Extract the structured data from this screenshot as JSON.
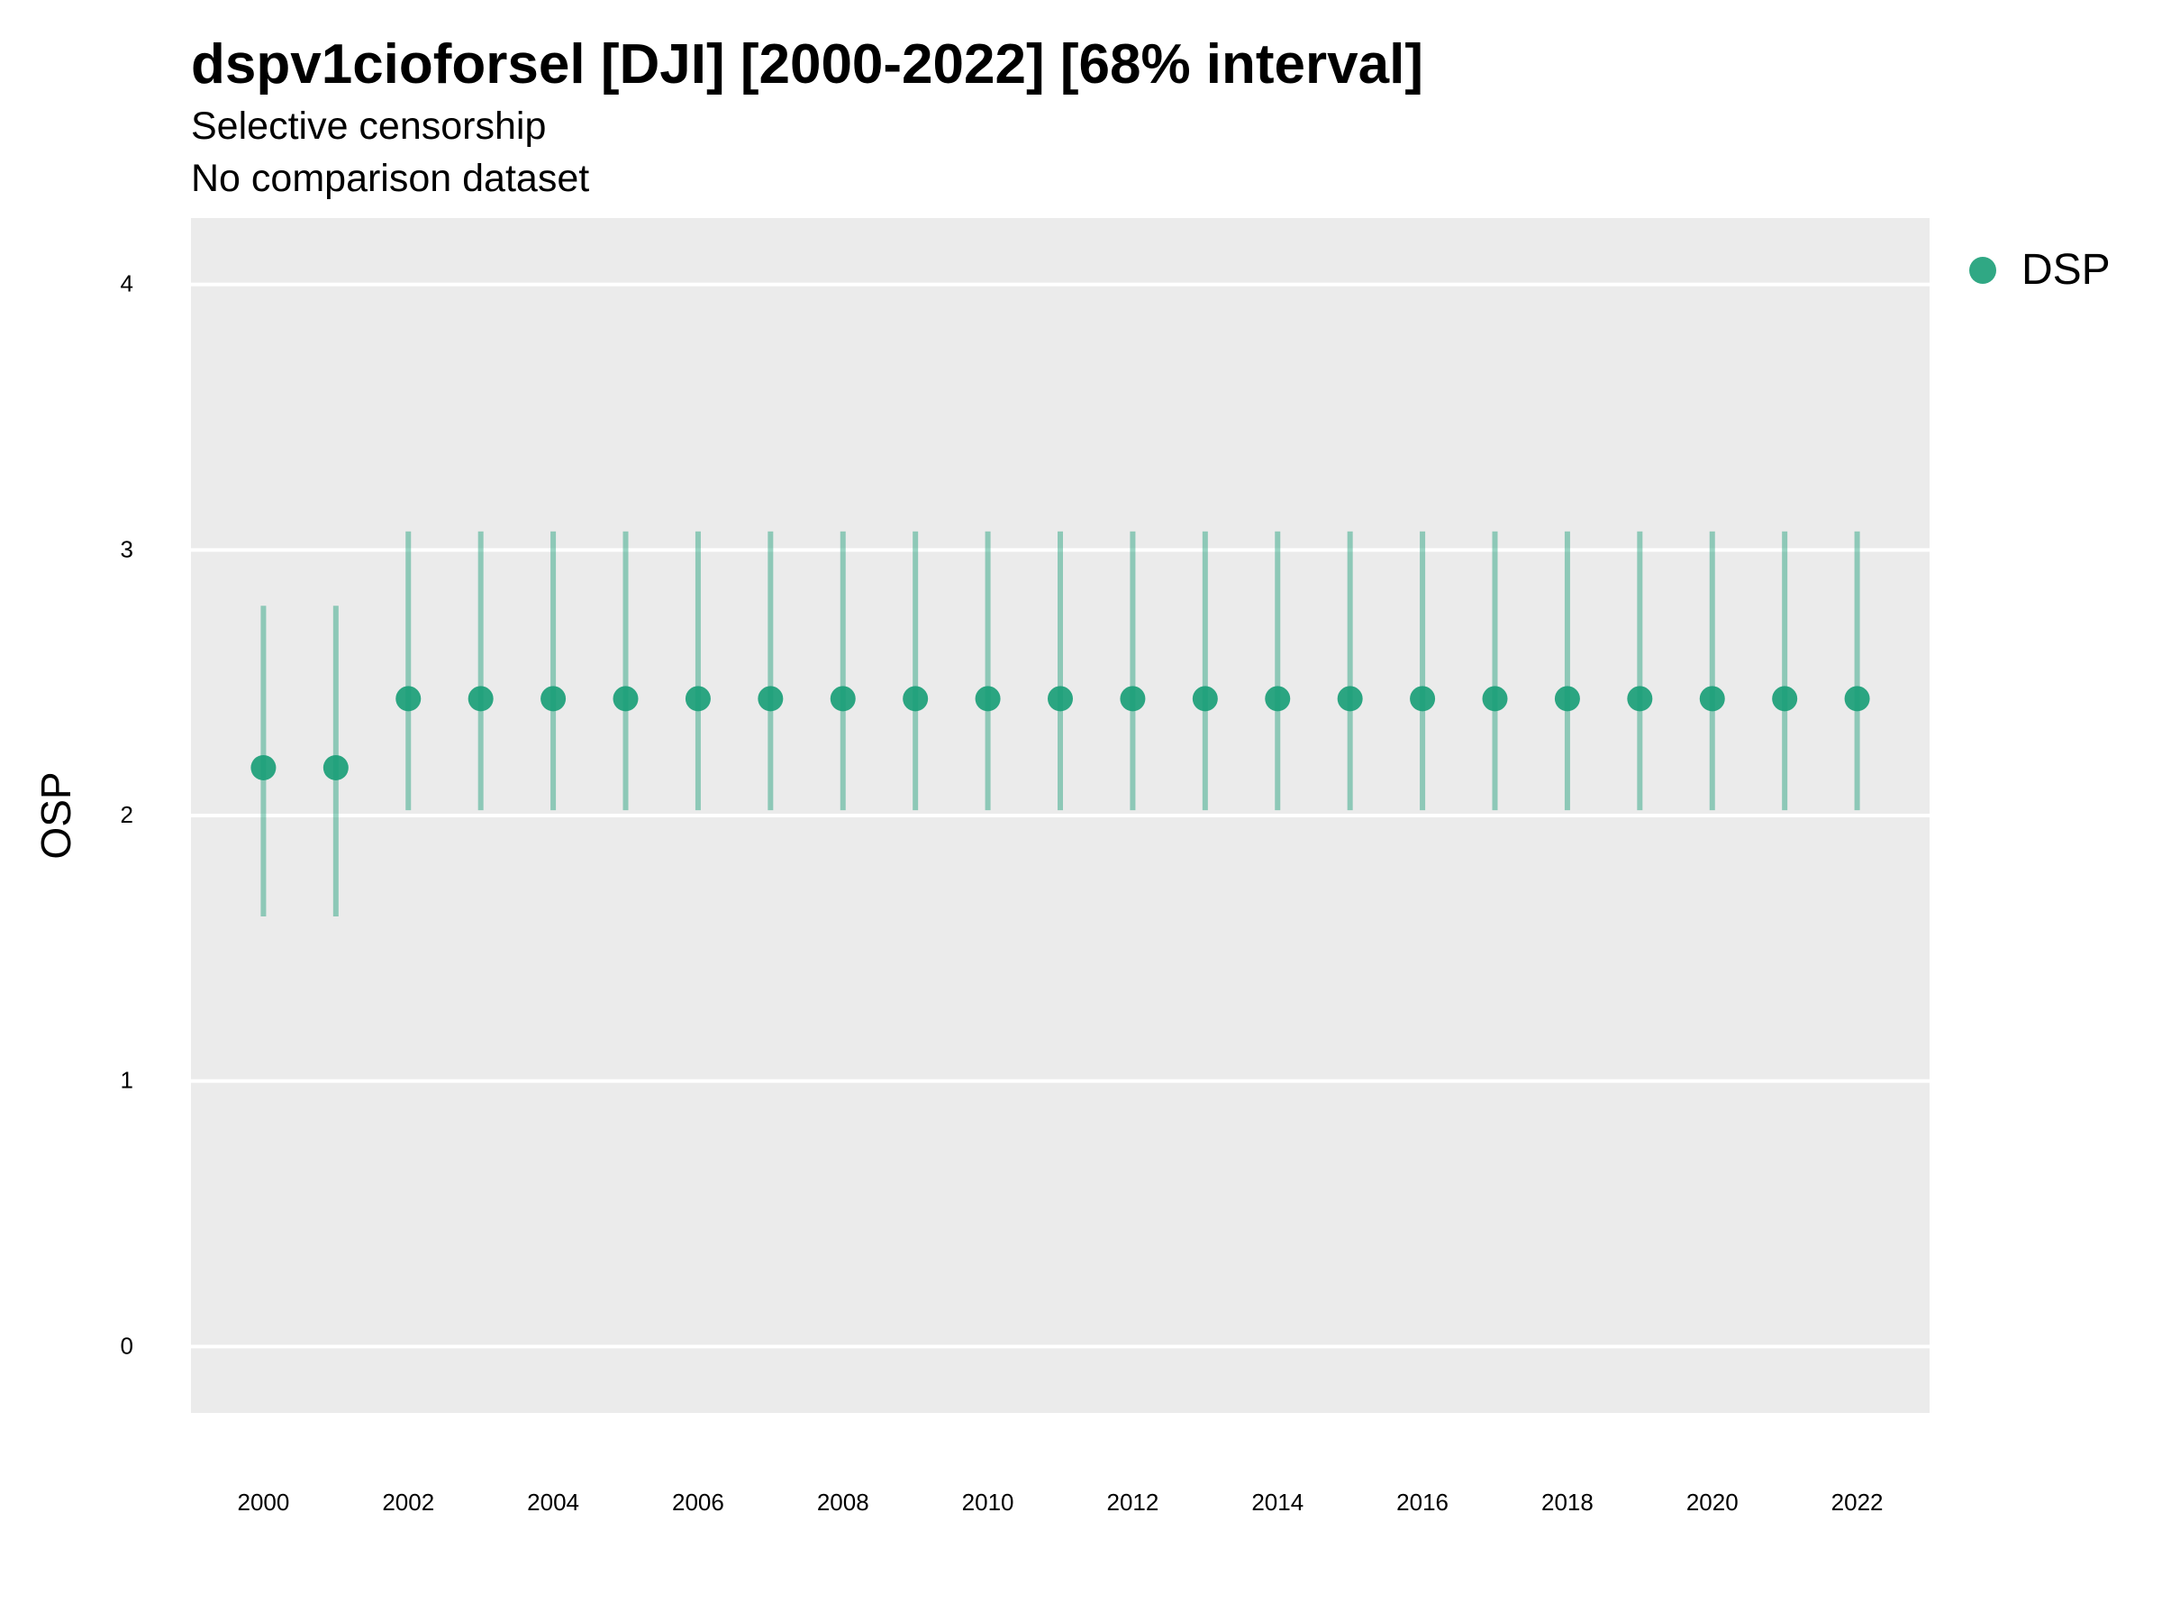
{
  "title": "dspv1cioforsel [DJI] [2000-2022] [68% interval]",
  "subtitle": "Selective censorship",
  "subtitle2": "No comparison dataset",
  "colors": {
    "series": "#1a9e77",
    "panel": "#ebebeb",
    "grid": "#ffffff"
  },
  "chart_data": {
    "type": "scatter",
    "ylabel": "OSP",
    "ylim": [
      -0.25,
      4.25
    ],
    "xlim": [
      1999,
      2023
    ],
    "yticks": [
      "0",
      "1",
      "2",
      "3",
      "4"
    ],
    "xticks": [
      "2000",
      "2002",
      "2004",
      "2006",
      "2008",
      "2010",
      "2012",
      "2014",
      "2016",
      "2018",
      "2020",
      "2022"
    ],
    "legend_position": "top-right",
    "grid": true,
    "series": [
      {
        "name": "DSP",
        "x": [
          2000,
          2001,
          2002,
          2003,
          2004,
          2005,
          2006,
          2007,
          2008,
          2009,
          2010,
          2011,
          2012,
          2013,
          2014,
          2015,
          2016,
          2017,
          2018,
          2019,
          2020,
          2021,
          2022
        ],
        "y": [
          2.18,
          2.18,
          2.44,
          2.44,
          2.44,
          2.44,
          2.44,
          2.44,
          2.44,
          2.44,
          2.44,
          2.44,
          2.44,
          2.44,
          2.44,
          2.44,
          2.44,
          2.44,
          2.44,
          2.44,
          2.44,
          2.44,
          2.44
        ],
        "lower": [
          1.62,
          1.62,
          2.02,
          2.02,
          2.02,
          2.02,
          2.02,
          2.02,
          2.02,
          2.02,
          2.02,
          2.02,
          2.02,
          2.02,
          2.02,
          2.02,
          2.02,
          2.02,
          2.02,
          2.02,
          2.02,
          2.02,
          2.02
        ],
        "upper": [
          2.79,
          2.79,
          3.07,
          3.07,
          3.07,
          3.07,
          3.07,
          3.07,
          3.07,
          3.07,
          3.07,
          3.07,
          3.07,
          3.07,
          3.07,
          3.07,
          3.07,
          3.07,
          3.07,
          3.07,
          3.07,
          3.07,
          3.07
        ]
      }
    ]
  }
}
